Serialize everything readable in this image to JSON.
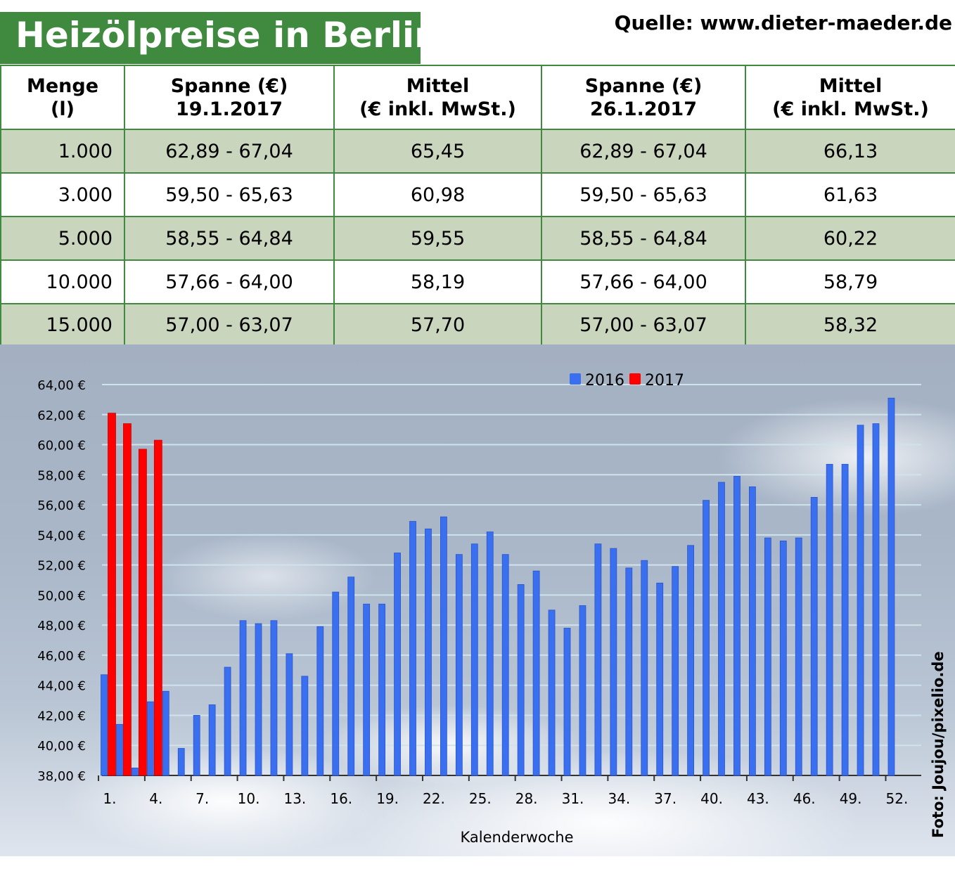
{
  "title": "Heizölpreise in Berlin",
  "source": "Quelle: www.dieter-maeder.de",
  "table": {
    "headers": [
      [
        "Menge",
        "(l)"
      ],
      [
        "Spanne (€)",
        "19.1.2017"
      ],
      [
        "Mittel",
        "(€ inkl. MwSt.)"
      ],
      [
        "Spanne (€)",
        "26.1.2017"
      ],
      [
        "Mittel",
        "(€ inkl. MwSt.)"
      ]
    ],
    "rows": [
      [
        "1.000",
        "62,89 - 67,04",
        "65,45",
        "62,89 - 67,04",
        "66,13"
      ],
      [
        "3.000",
        "59,50 - 65,63",
        "60,98",
        "59,50 - 65,63",
        "61,63"
      ],
      [
        "5.000",
        "58,55 - 64,84",
        "59,55",
        "58,55 - 64,84",
        "60,22"
      ],
      [
        "10.000",
        "57,66 - 64,00",
        "58,19",
        "57,66 - 64,00",
        "58,79"
      ],
      [
        "15.000",
        "57,00 - 63,07",
        "57,70",
        "57,00 - 63,07",
        "58,32"
      ]
    ]
  },
  "chart_data": {
    "type": "bar",
    "title": "",
    "xlabel": "Kalenderwoche",
    "ylabel": "",
    "ylim": [
      38,
      64
    ],
    "ytick_labels": [
      "38,00 €",
      "40,00 €",
      "42,00 €",
      "44,00 €",
      "46,00 €",
      "48,00 €",
      "50,00 €",
      "52,00 €",
      "54,00 €",
      "56,00 €",
      "58,00 €",
      "60,00 €",
      "62,00 €",
      "64,00 €"
    ],
    "xtick_labels": [
      "1.",
      "4.",
      "7.",
      "10.",
      "13.",
      "16.",
      "19.",
      "22.",
      "25.",
      "28.",
      "31.",
      "34.",
      "37.",
      "40.",
      "43.",
      "46.",
      "49.",
      "52."
    ],
    "legend_position": "top-center",
    "colors": {
      "2016": "#3a6ff0",
      "2017": "#ff0000"
    },
    "series": [
      {
        "name": "2016",
        "weeks": [
          1,
          2,
          3,
          4,
          5,
          6,
          7,
          8,
          9,
          10,
          11,
          12,
          13,
          14,
          15,
          16,
          17,
          18,
          19,
          20,
          21,
          22,
          23,
          24,
          25,
          26,
          27,
          28,
          29,
          30,
          31,
          32,
          33,
          34,
          35,
          36,
          37,
          38,
          39,
          40,
          41,
          42,
          43,
          44,
          45,
          46,
          47,
          48,
          49,
          50,
          51,
          52
        ],
        "values": [
          44.7,
          41.4,
          38.5,
          42.9,
          43.6,
          39.8,
          42.0,
          42.7,
          45.2,
          48.3,
          48.1,
          48.3,
          46.1,
          44.6,
          47.9,
          50.2,
          51.2,
          49.4,
          49.4,
          52.8,
          54.9,
          54.4,
          55.2,
          52.7,
          53.4,
          54.2,
          52.7,
          50.7,
          51.6,
          49.0,
          47.8,
          49.3,
          53.4,
          53.1,
          51.8,
          52.3,
          50.8,
          51.9,
          53.3,
          56.3,
          57.5,
          57.9,
          57.2,
          53.8,
          53.6,
          53.8,
          56.5,
          58.7,
          58.7,
          61.3,
          61.4,
          63.1
        ]
      },
      {
        "name": "2017",
        "weeks": [
          1,
          2,
          3,
          4
        ],
        "values": [
          62.1,
          61.4,
          59.7,
          60.3
        ]
      }
    ]
  },
  "photo_credit": "Foto: Joujou/pixelio.de"
}
